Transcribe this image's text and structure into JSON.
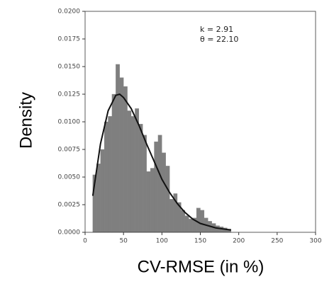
{
  "chart_data": {
    "type": "histogram",
    "xlabel": "CV-RMSE (in %)",
    "ylabel": "Density",
    "annotations": [
      "k = 2.91",
      "θ = 22.10"
    ],
    "bins": [
      10,
      15,
      20,
      25,
      30,
      35,
      40,
      45,
      50,
      55,
      60,
      65,
      70,
      75,
      80,
      85,
      90,
      95,
      100,
      105,
      110,
      115,
      120,
      125,
      130,
      135,
      140,
      145,
      150,
      155,
      160,
      165,
      170,
      175,
      180,
      185,
      190
    ],
    "values": [
      0.0052,
      0.0062,
      0.0075,
      0.01,
      0.0105,
      0.0125,
      0.0152,
      0.014,
      0.0132,
      0.011,
      0.0105,
      0.0112,
      0.0098,
      0.0088,
      0.0055,
      0.0058,
      0.0082,
      0.0088,
      0.0072,
      0.006,
      0.003,
      0.0035,
      0.0027,
      0.002,
      0.0015,
      0.0012,
      0.0013,
      0.0022,
      0.002,
      0.0013,
      0.001,
      0.0008,
      0.0006,
      0.0005,
      0.0004,
      0.0003
    ],
    "color": "#7f7f7f",
    "fit": {
      "x": [
        10,
        20,
        30,
        40,
        45,
        50,
        60,
        70,
        80,
        90,
        100,
        110,
        120,
        130,
        140,
        150,
        160,
        170,
        180,
        190
      ],
      "values": [
        0.0033,
        0.008,
        0.011,
        0.0124,
        0.0125,
        0.0122,
        0.0112,
        0.0097,
        0.008,
        0.0064,
        0.0048,
        0.0036,
        0.0026,
        0.0018,
        0.0012,
        0.0008,
        0.0006,
        0.0004,
        0.0003,
        0.0002
      ],
      "color": "#111111"
    },
    "xlim": [
      0,
      300
    ],
    "xticks": [
      0,
      50,
      100,
      150,
      200,
      250,
      300
    ],
    "ylim": [
      0,
      0.02
    ],
    "yticks": [
      {
        "value": 0,
        "label": "0.0000"
      },
      {
        "value": 0.0025,
        "label": "0.0025"
      },
      {
        "value": 0.005,
        "label": "0.0050"
      },
      {
        "value": 0.0075,
        "label": "0.0075"
      },
      {
        "value": 0.01,
        "label": "0.0100"
      },
      {
        "value": 0.0125,
        "label": "0.0125"
      },
      {
        "value": 0.015,
        "label": "0.0150"
      },
      {
        "value": 0.0175,
        "label": "0.0175"
      },
      {
        "value": 0.02,
        "label": "0.0200"
      }
    ]
  }
}
